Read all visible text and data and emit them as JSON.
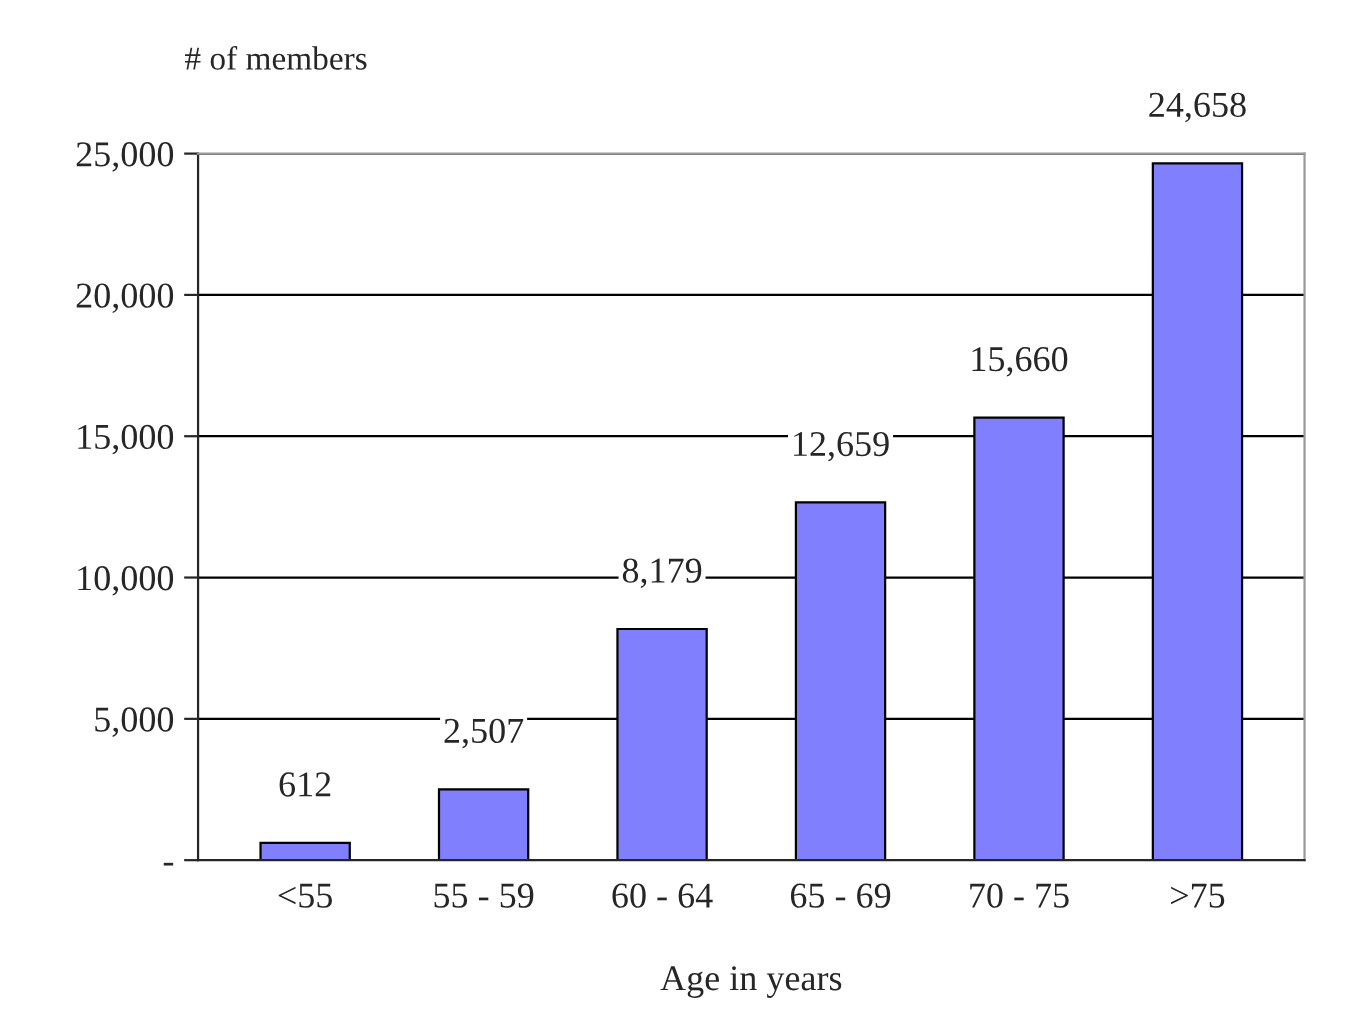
{
  "chart_data": {
    "type": "bar",
    "ylabel": "# of members",
    "xlabel": "Age in years",
    "categories": [
      "<55",
      "55 - 59",
      "60 - 64",
      "65 - 69",
      "70 - 75",
      ">75"
    ],
    "values": [
      612,
      2507,
      8179,
      12659,
      15660,
      24658
    ],
    "value_labels": [
      "612",
      "2,507",
      "8,179",
      "12,659",
      "15,660",
      "24,658"
    ],
    "color": "#8080ff",
    "ylim": [
      0,
      25000
    ],
    "yticks": [
      {
        "value": 0,
        "label": "-"
      },
      {
        "value": 5000,
        "label": "5,000"
      },
      {
        "value": 10000,
        "label": "10,000"
      },
      {
        "value": 15000,
        "label": "15,000"
      },
      {
        "value": 20000,
        "label": "20,000"
      },
      {
        "value": 25000,
        "label": "25,000"
      }
    ],
    "grid": "y",
    "legend": false
  }
}
